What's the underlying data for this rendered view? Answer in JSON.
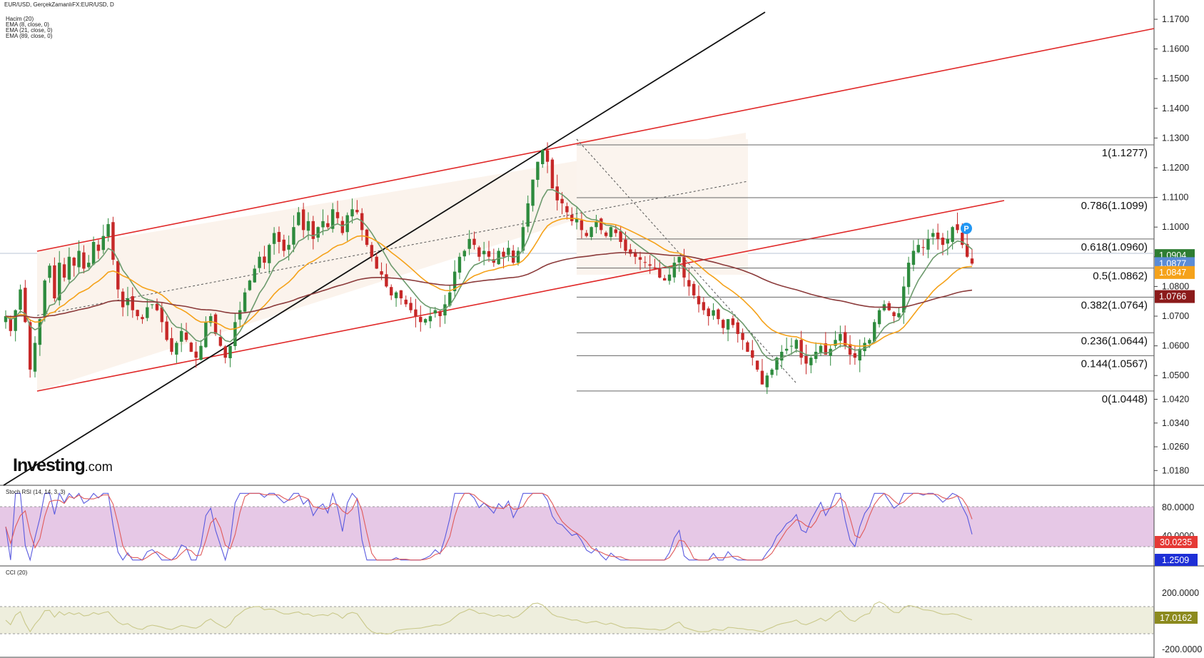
{
  "header": {
    "symbol_line": "EUR/USD, GerçekZamanlıFX:EUR/USD, D",
    "indicators": [
      "Hacim (20)",
      "EMA (8, close, 0)",
      "EMA (21, close, 0)",
      "EMA (89, close, 0)"
    ]
  },
  "brand": {
    "name": "Investing",
    "suffix": ".com"
  },
  "price_axis": {
    "ticks": [
      "1.1700",
      "1.1600",
      "1.1500",
      "1.1400",
      "1.1300",
      "1.1200",
      "1.1100",
      "1.1000",
      "1.0900",
      "1.0800",
      "1.0700",
      "1.0600",
      "1.0500",
      "1.0420",
      "1.0340",
      "1.0260",
      "1.0180"
    ],
    "tick_values": [
      1.17,
      1.16,
      1.15,
      1.14,
      1.13,
      1.12,
      1.11,
      1.1,
      1.09,
      1.08,
      1.07,
      1.06,
      1.05,
      1.042,
      1.034,
      1.026,
      1.018
    ]
  },
  "price_badges": [
    {
      "text": "1.0904",
      "value": 1.0904,
      "color": "#2e7d32"
    },
    {
      "text": "1.0877",
      "value": 1.0877,
      "color": "#5b8cd6"
    },
    {
      "text": "1.0847",
      "value": 1.0847,
      "color": "#f5a21a"
    },
    {
      "text": "1.0766",
      "value": 1.0766,
      "color": "#8b1a1a"
    }
  ],
  "fibonacci": {
    "levels": [
      {
        "label": "1(1.1277)",
        "value": 1.1277
      },
      {
        "label": "0.786(1.1099)",
        "value": 1.1099
      },
      {
        "label": "0.618(1.0960)",
        "value": 1.096
      },
      {
        "label": "0.5(1.0862)",
        "value": 1.0862
      },
      {
        "label": "0.382(1.0764)",
        "value": 1.0764
      },
      {
        "label": "0.236(1.0644)",
        "value": 1.0644
      },
      {
        "label": "0.144(1.0567)",
        "value": 1.0567
      },
      {
        "label": "0(1.0448)",
        "value": 1.0448
      }
    ]
  },
  "marker": {
    "text": "P",
    "color": "#2196f3"
  },
  "stoch": {
    "title": "Stoch RSI (14, 14, 3, 3)",
    "ticks": [
      "80.0000",
      "40.0000"
    ],
    "badges": [
      {
        "text": "30.0235",
        "color": "#e53935"
      },
      {
        "text": "1.2509",
        "color": "#1e2fd6"
      }
    ]
  },
  "cci": {
    "title": "CCI (20)",
    "ticks": [
      "200.0000",
      "-200.0000"
    ],
    "badges": [
      {
        "text": "17.0162",
        "color": "#8c8a1e"
      }
    ]
  },
  "chart_data": {
    "type": "candlestick",
    "symbol": "EUR/USD",
    "timeframe": "D",
    "ylim": [
      1.012,
      1.178
    ],
    "close": [
      1.07,
      1.065,
      1.072,
      1.079,
      1.068,
      1.052,
      1.061,
      1.069,
      1.082,
      1.087,
      1.076,
      1.088,
      1.083,
      1.09,
      1.087,
      1.092,
      1.086,
      1.088,
      1.095,
      1.092,
      1.097,
      1.101,
      1.089,
      1.079,
      1.073,
      1.076,
      1.072,
      1.07,
      1.069,
      1.073,
      1.074,
      1.072,
      1.068,
      1.062,
      1.058,
      1.061,
      1.065,
      1.062,
      1.058,
      1.056,
      1.06,
      1.068,
      1.07,
      1.064,
      1.06,
      1.056,
      1.06,
      1.068,
      1.072,
      1.078,
      1.082,
      1.086,
      1.09,
      1.088,
      1.094,
      1.098,
      1.095,
      1.092,
      1.094,
      1.1,
      1.105,
      1.099,
      1.102,
      1.096,
      1.1,
      1.102,
      1.1,
      1.106,
      1.103,
      1.098,
      1.104,
      1.106,
      1.105,
      1.099,
      1.094,
      1.09,
      1.086,
      1.084,
      1.08,
      1.077,
      1.078,
      1.076,
      1.074,
      1.072,
      1.07,
      1.068,
      1.069,
      1.07,
      1.072,
      1.07,
      1.074,
      1.078,
      1.085,
      1.09,
      1.092,
      1.096,
      1.094,
      1.09,
      1.092,
      1.09,
      1.088,
      1.092,
      1.09,
      1.093,
      1.088,
      1.092,
      1.1,
      1.108,
      1.116,
      1.122,
      1.126,
      1.122,
      1.113,
      1.109,
      1.108,
      1.105,
      1.102,
      1.103,
      1.099,
      1.097,
      1.1,
      1.102,
      1.099,
      1.097,
      1.1,
      1.098,
      1.095,
      1.092,
      1.091,
      1.09,
      1.089,
      1.088,
      1.087,
      1.086,
      1.083,
      1.082,
      1.084,
      1.088,
      1.09,
      1.083,
      1.08,
      1.077,
      1.074,
      1.072,
      1.07,
      1.072,
      1.069,
      1.066,
      1.069,
      1.067,
      1.064,
      1.062,
      1.058,
      1.056,
      1.052,
      1.047,
      1.05,
      1.052,
      1.056,
      1.058,
      1.059,
      1.06,
      1.062,
      1.056,
      1.054,
      1.056,
      1.058,
      1.06,
      1.057,
      1.059,
      1.062,
      1.064,
      1.06,
      1.057,
      1.056,
      1.059,
      1.061,
      1.062,
      1.068,
      1.072,
      1.074,
      1.072,
      1.07,
      1.071,
      1.08,
      1.088,
      1.092,
      1.094,
      1.093,
      1.096,
      1.098,
      1.096,
      1.094,
      1.096,
      1.1,
      1.099,
      1.094,
      1.09,
      1.0877
    ],
    "ema": [
      {
        "period": 8,
        "color": "#6d9a6d",
        "last": 1.0904
      },
      {
        "period": 21,
        "color": "#f5a21a",
        "last": 1.0847
      },
      {
        "period": 89,
        "color": "#8b3a3a",
        "last": 1.0766
      }
    ],
    "fib_anchor": {
      "high": 1.1277,
      "low": 1.0448
    }
  }
}
